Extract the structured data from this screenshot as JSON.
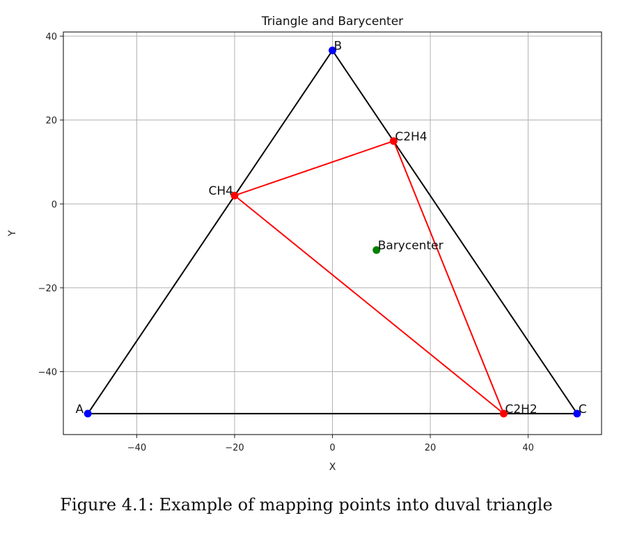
{
  "chart_data": {
    "type": "scatter",
    "title": "Triangle and Barycenter",
    "xlabel": "X",
    "ylabel": "Y",
    "xlim": [
      -55,
      55
    ],
    "ylim": [
      -55,
      41
    ],
    "xticks": [
      -40,
      -20,
      0,
      20,
      40
    ],
    "yticks": [
      -40,
      -20,
      0,
      20,
      40
    ],
    "grid": true,
    "outer_triangle": {
      "color": "#000000",
      "points": [
        {
          "label": "A",
          "x": -50,
          "y": -50
        },
        {
          "label": "B",
          "x": 0,
          "y": 36.6
        },
        {
          "label": "C",
          "x": 50,
          "y": -50
        }
      ]
    },
    "inner_triangle": {
      "color": "#ff0000",
      "points": [
        {
          "label": "CH4",
          "x": -20,
          "y": 2
        },
        {
          "label": "C2H4",
          "x": 12.5,
          "y": 15
        },
        {
          "label": "C2H2",
          "x": 35,
          "y": -50
        }
      ]
    },
    "barycenter": {
      "label": "Barycenter",
      "x": 9,
      "y": -11,
      "color": "#008000"
    }
  },
  "caption": "Figure 4.1: Example of mapping points into duval triangle"
}
